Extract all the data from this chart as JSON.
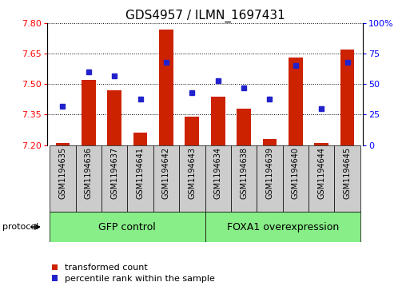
{
  "title": "GDS4957 / ILMN_1697431",
  "samples": [
    "GSM1194635",
    "GSM1194636",
    "GSM1194637",
    "GSM1194641",
    "GSM1194642",
    "GSM1194643",
    "GSM1194634",
    "GSM1194638",
    "GSM1194639",
    "GSM1194640",
    "GSM1194644",
    "GSM1194645"
  ],
  "transformed_count": [
    7.21,
    7.52,
    7.47,
    7.26,
    7.77,
    7.34,
    7.44,
    7.38,
    7.23,
    7.63,
    7.21,
    7.67
  ],
  "percentile_rank": [
    32,
    60,
    57,
    38,
    68,
    43,
    53,
    47,
    38,
    65,
    30,
    68
  ],
  "groups": [
    {
      "label": "GFP control",
      "start": 0,
      "end": 6
    },
    {
      "label": "FOXA1 overexpression",
      "start": 6,
      "end": 12
    }
  ],
  "left_ylim": [
    7.2,
    7.8
  ],
  "right_ylim": [
    0,
    100
  ],
  "left_yticks": [
    7.2,
    7.35,
    7.5,
    7.65,
    7.8
  ],
  "right_yticks": [
    0,
    25,
    50,
    75,
    100
  ],
  "right_yticklabels": [
    "0",
    "25",
    "50",
    "75",
    "100%"
  ],
  "bar_color": "#cc2200",
  "dot_color": "#2222cc",
  "bar_width": 0.55,
  "baseline": 7.2,
  "sample_box_color": "#cccccc",
  "group_color": "#88ee88",
  "protocol_label": "protocol",
  "legend_items": [
    {
      "label": "transformed count",
      "color": "#cc2200"
    },
    {
      "label": "percentile rank within the sample",
      "color": "#2222cc"
    }
  ],
  "title_fontsize": 11,
  "tick_fontsize": 8,
  "sample_fontsize": 7,
  "group_fontsize": 9,
  "legend_fontsize": 8
}
